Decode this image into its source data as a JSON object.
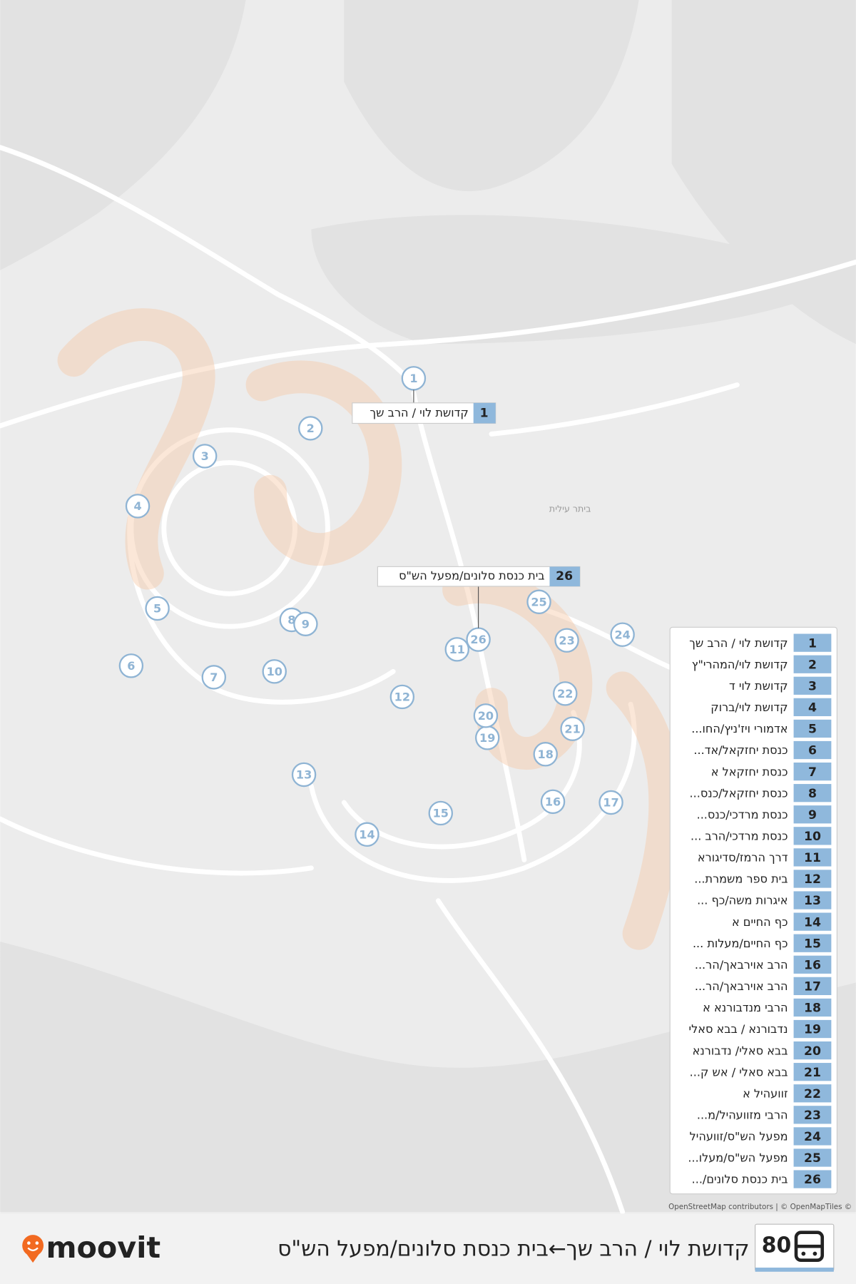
{
  "route": "80",
  "title": "קדושת לוי / הרב שך←בית כנסת סלונים/מפעל הש\"ס",
  "brand": "moovit",
  "attribution": "OpenStreetMap contributors | © OpenMapTiles ©",
  "place_label": "ביתר עילית",
  "start": {
    "number": 1,
    "name": "קדושת לוי / הרב שך"
  },
  "end": {
    "number": 26,
    "name": "בית כנסת סלונים/מפעל הש\"ס"
  },
  "stops": [
    {
      "number": 1,
      "name": "קדושת לוי / הרב שך"
    },
    {
      "number": 2,
      "name": "קדושת לוי/המהרי\"ץ"
    },
    {
      "number": 3,
      "name": "קדושת לוי ד"
    },
    {
      "number": 4,
      "name": "קדושת לוי/ברוק"
    },
    {
      "number": 5,
      "name": "אדמורי ויז'ניץ/החו..."
    },
    {
      "number": 6,
      "name": "כנסת יחזקאל/אד..."
    },
    {
      "number": 7,
      "name": "כנסת יחזקאל א"
    },
    {
      "number": 8,
      "name": "כנסת יחזקאל/כנס..."
    },
    {
      "number": 9,
      "name": "כנסת מרדכי/כנס..."
    },
    {
      "number": 10,
      "name": "כנסת מרדכי/הרב ..."
    },
    {
      "number": 11,
      "name": "דרך הרמז/סדיגורא"
    },
    {
      "number": 12,
      "name": "בית ספר משמרת..."
    },
    {
      "number": 13,
      "name": "איגרות משה/כף ..."
    },
    {
      "number": 14,
      "name": "כף החיים א"
    },
    {
      "number": 15,
      "name": "כף החיים/מעלות ..."
    },
    {
      "number": 16,
      "name": "הרב אוירבאך/הר..."
    },
    {
      "number": 17,
      "name": "הרב אוירבאך/הר..."
    },
    {
      "number": 18,
      "name": "הרבי מנדבורנא א"
    },
    {
      "number": 19,
      "name": "נדבורנא / בבא סאלי"
    },
    {
      "number": 20,
      "name": "בבא סאלי/ נדבורנא"
    },
    {
      "number": 21,
      "name": "בבא סאלי / אש ק..."
    },
    {
      "number": 22,
      "name": "זוועהיל א"
    },
    {
      "number": 23,
      "name": "הרבי מזוועהיל/מ..."
    },
    {
      "number": 24,
      "name": "מפעל הש\"ס/זוועהיל"
    },
    {
      "number": 25,
      "name": "מפעל הש\"ס/מעלו..."
    },
    {
      "number": 26,
      "name": "בית כנסת סלונים/..."
    }
  ]
}
